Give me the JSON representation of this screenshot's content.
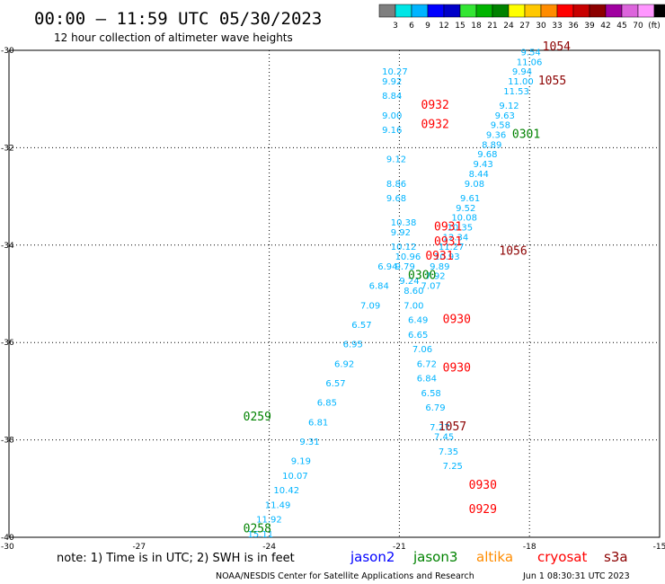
{
  "header": {
    "title": "00:00 – 11:59 UTC 05/30/2023",
    "subtitle": "12 hour collection of altimeter wave heights"
  },
  "colorbar": {
    "colors": [
      "#7f7f7f",
      "#00e6e6",
      "#00b4ff",
      "#0000ff",
      "#0000c8",
      "#33e633",
      "#00b400",
      "#008200",
      "#ffff00",
      "#ffc800",
      "#ff8c00",
      "#ff0000",
      "#c80000",
      "#8c0000",
      "#a000a0",
      "#dc64dc",
      "#ff96ff",
      "#000000"
    ],
    "labels": [
      "3",
      "6",
      "9",
      "12",
      "15",
      "18",
      "21",
      "24",
      "27",
      "30",
      "33",
      "36",
      "39",
      "42",
      "45",
      "70",
      "(ft)"
    ]
  },
  "axes": {
    "x_ticks": [
      -27,
      -24,
      -21,
      -18,
      -15
    ],
    "x_tick_labels": [
      "-27",
      "-24",
      "-21",
      "-18",
      "-15"
    ],
    "y_ticks": [
      -30,
      -32,
      -34,
      -36,
      -38,
      -40
    ],
    "y_tick_labels": [
      "-30",
      "-32",
      "-34",
      "-36",
      "-38",
      "-40"
    ],
    "x_left_label": "-30"
  },
  "chart_data": {
    "type": "scatter",
    "xlim": [
      -30,
      -15
    ],
    "ylim": [
      -40,
      -30
    ],
    "grid": true,
    "point_colors": {
      "band1": "#7f7f7f",
      "band2": "#00b4ff",
      "band3": "#0000c8",
      "band4": "#33e633"
    },
    "satellite_colors": {
      "jason2": "#0000ff",
      "jason3": "#008200",
      "altika": "#ff8c00",
      "cryosat": "#ff0000",
      "s3a": "#8c0000"
    },
    "tracks": [
      {
        "name": "track-nw-se",
        "color_band": "band2",
        "x": [
          -21.4,
          -21.4,
          -21.4,
          -21.4,
          -21.4,
          -21.3,
          -21.3,
          -21.3,
          -21.2,
          -21.2,
          -21.2,
          -21.1,
          -21.1,
          -21.0,
          -20.9,
          -20.9,
          -20.8,
          -20.8,
          -20.7,
          -20.6,
          -20.6,
          -20.5,
          -20.4,
          -20.3,
          -20.2,
          -20.1,
          -20.0
        ],
        "y": [
          -30.5,
          -30.7,
          -31.0,
          -31.4,
          -31.7,
          -32.3,
          -32.8,
          -33.1,
          -33.6,
          -33.8,
          -34.1,
          -34.3,
          -34.5,
          -34.8,
          -35.0,
          -35.3,
          -35.6,
          -35.9,
          -36.2,
          -36.5,
          -36.8,
          -37.1,
          -37.4,
          -37.8,
          -38.0,
          -38.3,
          -38.6
        ],
        "values": [
          "10.27",
          "9.92",
          "8.84",
          "9.00",
          "9.16",
          "9.12",
          "8.86",
          "9.68",
          "10.38",
          "9.92",
          "10.12",
          "10.96",
          "9.79",
          "9.24",
          "8.60",
          "7.00",
          "6.49",
          "6.65",
          "7.06",
          "6.72",
          "6.84",
          "6.58",
          "6.79",
          "7.27",
          "7.45",
          "7.35",
          "7.25"
        ]
      },
      {
        "name": "track-sw-ne",
        "color_band": "band2",
        "x": [
          -18.2,
          -18.3,
          -18.4,
          -18.5,
          -18.6,
          -18.7,
          -18.8,
          -18.9,
          -19.0,
          -19.1,
          -19.2,
          -19.3,
          -19.4,
          -19.5,
          -19.6,
          -19.7,
          -19.8,
          -19.9,
          -20.0,
          -20.1,
          -20.2,
          -20.3,
          -20.4,
          -20.5
        ],
        "y": [
          -30.1,
          -30.3,
          -30.5,
          -30.7,
          -30.9,
          -31.2,
          -31.4,
          -31.6,
          -31.8,
          -32.0,
          -32.2,
          -32.4,
          -32.6,
          -32.8,
          -33.1,
          -33.3,
          -33.5,
          -33.7,
          -33.9,
          -34.1,
          -34.3,
          -34.5,
          -34.7,
          -34.9
        ],
        "values": [
          "9.54",
          "11.06",
          "9.94",
          "11.00",
          "11.53",
          "9.12",
          "9.63",
          "9.58",
          "9.36",
          "8.89",
          "9.68",
          "9.43",
          "8.44",
          "9.08",
          "9.61",
          "9.52",
          "10.08",
          "10.35",
          "12.34",
          "11.27",
          "10.93",
          "9.89",
          "7.92",
          "7.07"
        ]
      },
      {
        "name": "track-diag-west",
        "color_band": "band2",
        "x": [
          -21.5,
          -21.7,
          -21.9,
          -22.1,
          -22.3,
          -22.5,
          -22.7,
          -22.9,
          -23.1,
          -23.3,
          -23.5,
          -23.7,
          -23.9,
          -24.1,
          -24.3,
          -24.5
        ],
        "y": [
          -34.5,
          -34.9,
          -35.3,
          -35.7,
          -36.1,
          -36.5,
          -36.9,
          -37.3,
          -37.7,
          -38.1,
          -38.5,
          -38.8,
          -39.1,
          -39.4,
          -39.7,
          -40.0
        ],
        "values": [
          "6.94",
          "6.84",
          "7.09",
          "6.57",
          "6.95",
          "6.92",
          "6.57",
          "6.85",
          "6.81",
          "9.31",
          "9.19",
          "10.07",
          "10.42",
          "11.49",
          "11.92",
          "15.11"
        ]
      }
    ],
    "passes": [
      {
        "label": "1054",
        "x": -17.7,
        "y": -30.0,
        "satellite": "s3a"
      },
      {
        "label": "1055",
        "x": -17.8,
        "y": -30.7,
        "satellite": "s3a"
      },
      {
        "label": "0932",
        "x": -20.5,
        "y": -31.2,
        "satellite": "cryosat"
      },
      {
        "label": "0932",
        "x": -20.5,
        "y": -31.6,
        "satellite": "cryosat"
      },
      {
        "label": "0301",
        "x": -18.4,
        "y": -31.8,
        "satellite": "jason3"
      },
      {
        "label": "0931",
        "x": -20.2,
        "y": -33.7,
        "satellite": "cryosat"
      },
      {
        "label": "0931",
        "x": -20.2,
        "y": -34.0,
        "satellite": "cryosat"
      },
      {
        "label": "1056",
        "x": -18.7,
        "y": -34.2,
        "satellite": "s3a"
      },
      {
        "label": "0931",
        "x": -20.4,
        "y": -34.3,
        "satellite": "cryosat"
      },
      {
        "label": "0300",
        "x": -20.8,
        "y": -34.7,
        "satellite": "jason3"
      },
      {
        "label": "0930",
        "x": -20.0,
        "y": -35.6,
        "satellite": "cryosat"
      },
      {
        "label": "0930",
        "x": -20.0,
        "y": -36.6,
        "satellite": "cryosat"
      },
      {
        "label": "0259",
        "x": -24.6,
        "y": -37.6,
        "satellite": "jason3"
      },
      {
        "label": "1057",
        "x": -20.1,
        "y": -37.8,
        "satellite": "s3a"
      },
      {
        "label": "0930",
        "x": -19.4,
        "y": -39.0,
        "satellite": "cryosat"
      },
      {
        "label": "0929",
        "x": -19.4,
        "y": -39.5,
        "satellite": "cryosat"
      },
      {
        "label": "0258",
        "x": -24.6,
        "y": -39.9,
        "satellite": "jason3"
      }
    ]
  },
  "legend": {
    "note": "note: 1) Time is in UTC; 2) SWH is in feet",
    "items": [
      {
        "label": "jason2",
        "color": "#0000ff"
      },
      {
        "label": "jason3",
        "color": "#008200"
      },
      {
        "label": "altika",
        "color": "#ff8c00"
      },
      {
        "label": "cryosat",
        "color": "#ff0000"
      },
      {
        "label": "s3a",
        "color": "#8c0000"
      }
    ]
  },
  "footer": {
    "credit": "NOAA/NESDIS Center for Satellite Applications and Research",
    "timestamp": "Jun  1 08:30:31 UTC 2023"
  }
}
